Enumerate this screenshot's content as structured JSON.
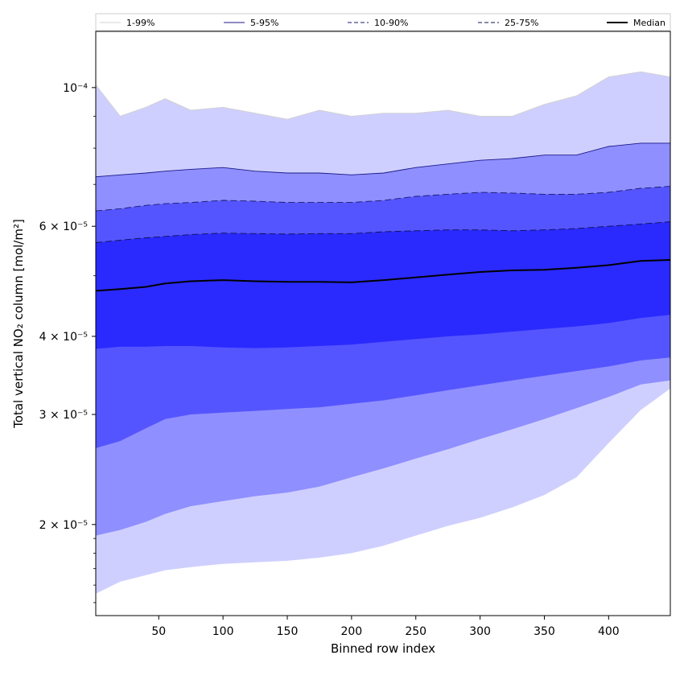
{
  "chart_data": {
    "type": "area",
    "xlabel": "Binned row index",
    "ylabel": "Total vertical NO₂ column [mol/m²]",
    "xlim": [
      1,
      448
    ],
    "ylim": [
      1.43e-05,
      0.000123
    ],
    "yscale": "log",
    "grid": false,
    "legend_position": "top",
    "x_ticks": [
      50,
      100,
      150,
      200,
      250,
      300,
      350,
      400
    ],
    "y_ticks": [
      {
        "value": 0.0001,
        "label": "10⁻⁴"
      },
      {
        "value": 6e-05,
        "label": "6 × 10⁻⁵"
      },
      {
        "value": 4e-05,
        "label": "4 × 10⁻⁵"
      },
      {
        "value": 3e-05,
        "label": "3 × 10⁻⁵"
      },
      {
        "value": 2e-05,
        "label": "2 × 10⁻⁵"
      }
    ],
    "x": [
      1,
      20,
      40,
      55,
      75,
      100,
      125,
      150,
      175,
      200,
      225,
      250,
      275,
      300,
      325,
      350,
      375,
      400,
      425,
      448
    ],
    "bands": [
      {
        "name": "1-99%",
        "color": "#cfcfff",
        "line": "#d0d0d0",
        "dash": "",
        "lower": [
          1.55e-05,
          1.62e-05,
          1.66e-05,
          1.69e-05,
          1.71e-05,
          1.73e-05,
          1.74e-05,
          1.75e-05,
          1.77e-05,
          1.8e-05,
          1.85e-05,
          1.92e-05,
          1.99e-05,
          2.05e-05,
          2.13e-05,
          2.23e-05,
          2.38e-05,
          2.7e-05,
          3.05e-05,
          3.3e-05
        ],
        "upper": [
          0.000101,
          9e-05,
          9.3e-05,
          9.6e-05,
          9.2e-05,
          9.3e-05,
          9.1e-05,
          8.9e-05,
          9.2e-05,
          9e-05,
          9.1e-05,
          9.1e-05,
          9.2e-05,
          9e-05,
          9e-05,
          9.4e-05,
          9.7e-05,
          0.000104,
          0.000106,
          0.000104
        ]
      },
      {
        "name": "5-95%",
        "color": "#8f8fff",
        "line": "#1a1a8a",
        "dash": "",
        "lower": [
          1.92e-05,
          1.96e-05,
          2.02e-05,
          2.08e-05,
          2.14e-05,
          2.18e-05,
          2.22e-05,
          2.25e-05,
          2.3e-05,
          2.38e-05,
          2.46e-05,
          2.55e-05,
          2.64e-05,
          2.74e-05,
          2.84e-05,
          2.95e-05,
          3.07e-05,
          3.2e-05,
          3.35e-05,
          3.4e-05
        ],
        "upper": [
          7.2e-05,
          7.25e-05,
          7.3e-05,
          7.35e-05,
          7.4e-05,
          7.45e-05,
          7.35e-05,
          7.3e-05,
          7.3e-05,
          7.25e-05,
          7.3e-05,
          7.45e-05,
          7.55e-05,
          7.65e-05,
          7.7e-05,
          7.8e-05,
          7.8e-05,
          8.05e-05,
          8.15e-05,
          8.15e-05
        ]
      },
      {
        "name": "10-90%",
        "color": "#5555ff",
        "line": "#1a1a6a",
        "dash": "8,4",
        "lower": [
          2.65e-05,
          2.72e-05,
          2.85e-05,
          2.95e-05,
          3e-05,
          3.02e-05,
          3.04e-05,
          3.06e-05,
          3.08e-05,
          3.12e-05,
          3.16e-05,
          3.22e-05,
          3.28e-05,
          3.34e-05,
          3.4e-05,
          3.46e-05,
          3.52e-05,
          3.58e-05,
          3.66e-05,
          3.7e-05
        ],
        "upper": [
          6.35e-05,
          6.4e-05,
          6.48e-05,
          6.52e-05,
          6.55e-05,
          6.6e-05,
          6.58e-05,
          6.55e-05,
          6.55e-05,
          6.55e-05,
          6.6e-05,
          6.7e-05,
          6.75e-05,
          6.8e-05,
          6.78e-05,
          6.75e-05,
          6.75e-05,
          6.8e-05,
          6.9e-05,
          6.95e-05
        ]
      },
      {
        "name": "25-75%",
        "color": "#2a2aff",
        "line": "#101050",
        "dash": "8,4",
        "lower": [
          3.82e-05,
          3.85e-05,
          3.85e-05,
          3.86e-05,
          3.86e-05,
          3.84e-05,
          3.83e-05,
          3.84e-05,
          3.86e-05,
          3.88e-05,
          3.92e-05,
          3.96e-05,
          4e-05,
          4.03e-05,
          4.07e-05,
          4.11e-05,
          4.15e-05,
          4.2e-05,
          4.28e-05,
          4.33e-05
        ],
        "upper": [
          5.65e-05,
          5.7e-05,
          5.75e-05,
          5.78e-05,
          5.82e-05,
          5.85e-05,
          5.84e-05,
          5.83e-05,
          5.84e-05,
          5.84e-05,
          5.88e-05,
          5.9e-05,
          5.92e-05,
          5.92e-05,
          5.9e-05,
          5.92e-05,
          5.95e-05,
          6e-05,
          6.05e-05,
          6.1e-05
        ]
      }
    ],
    "median": {
      "name": "Median",
      "color": "#000000",
      "values": [
        4.73e-05,
        4.76e-05,
        4.8e-05,
        4.86e-05,
        4.9e-05,
        4.92e-05,
        4.9e-05,
        4.89e-05,
        4.89e-05,
        4.88e-05,
        4.92e-05,
        4.97e-05,
        5.02e-05,
        5.07e-05,
        5.1e-05,
        5.11e-05,
        5.15e-05,
        5.2e-05,
        5.28e-05,
        5.3e-05
      ]
    }
  }
}
